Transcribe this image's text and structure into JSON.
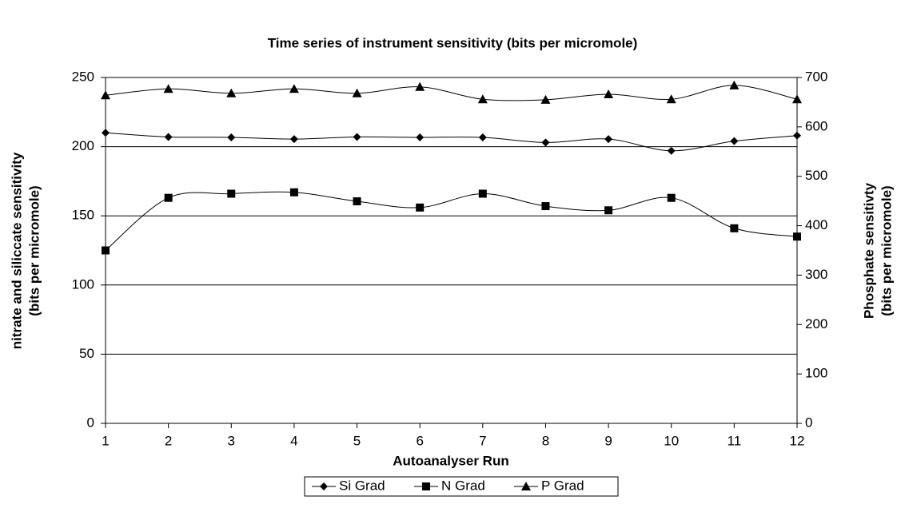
{
  "chart_data": {
    "type": "line",
    "title": "Time series of instrument sensitivity (bits per micromole)",
    "x_label": "Autoanalyser Run",
    "y_label": [
      "nitrate and siliccate   sensitivity",
      "(bits per micromole)"
    ],
    "y2_label": [
      "Phosphate sensitivty",
      "(bits per micromole)"
    ],
    "x": [
      1,
      2,
      3,
      4,
      5,
      6,
      7,
      8,
      9,
      10,
      11,
      12
    ],
    "xlim": [
      1,
      12
    ],
    "xticks": [
      1,
      2,
      3,
      4,
      5,
      6,
      7,
      8,
      9,
      10,
      11,
      12
    ],
    "ylim": [
      0,
      250
    ],
    "yticks": [
      0,
      50,
      100,
      150,
      200,
      250
    ],
    "y2lim": [
      0,
      700
    ],
    "y2ticks": [
      0,
      100,
      200,
      300,
      400,
      500,
      600,
      700
    ],
    "grid": true,
    "legend": "bottom",
    "series": [
      {
        "name": "Si Grad",
        "color": "#000000",
        "marker": "diamond",
        "values": [
          210,
          207,
          206.7,
          205.5,
          207,
          206.7,
          206.7,
          203,
          205.5,
          197,
          204,
          208
        ]
      },
      {
        "name": "N Grad",
        "color": "#000000",
        "marker": "square",
        "values": [
          125,
          163,
          166,
          167,
          160.5,
          156,
          166,
          157,
          154,
          163,
          141,
          135
        ]
      },
      {
        "name": "P Grad",
        "color": "#000000",
        "marker": "triangle",
        "axis": "y2",
        "values": [
          664,
          677,
          668,
          677,
          668,
          681,
          656,
          655,
          666,
          656,
          684,
          656
        ]
      }
    ]
  }
}
